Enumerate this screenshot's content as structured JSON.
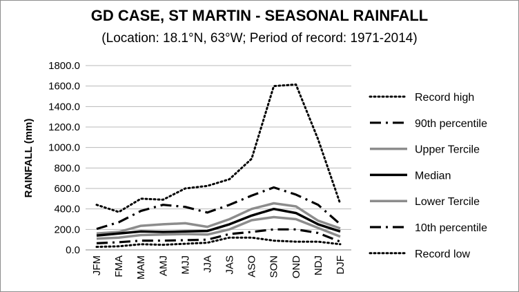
{
  "chart_data": {
    "type": "line",
    "title": "GD CASE, ST MARTIN - SEASONAL RAINFALL",
    "subtitle": "(Location: 18.1°N, 63°W; Period of record: 1971-2014)",
    "xlabel": "",
    "ylabel": "RAINFALL (mm)",
    "ylim": [
      0,
      1800
    ],
    "ytick_step": 200,
    "ytick_format_decimals": 1,
    "grid": "horizontal",
    "legend_position": "right",
    "categories": [
      "JFM",
      "FMA",
      "MAM",
      "AMJ",
      "MJJ",
      "JJA",
      "JAS",
      "ASO",
      "SON",
      "OND",
      "NDJ",
      "DJF"
    ],
    "series": [
      {
        "name": "Record high",
        "style": "dotted",
        "color": "#000000",
        "values": [
          440,
          370,
          500,
          490,
          600,
          625,
          690,
          890,
          1600,
          1615,
          1080,
          450
        ]
      },
      {
        "name": "90th percentile",
        "style": "dashdot",
        "color": "#000000",
        "values": [
          205,
          270,
          380,
          440,
          420,
          365,
          440,
          530,
          610,
          540,
          440,
          250
        ]
      },
      {
        "name": "Upper Tercile",
        "style": "solid-gray",
        "color": "#8c8c8c",
        "values": [
          160,
          175,
          235,
          250,
          260,
          225,
          300,
          400,
          455,
          425,
          285,
          210
        ]
      },
      {
        "name": "Median",
        "style": "solid-black",
        "color": "#000000",
        "values": [
          140,
          160,
          180,
          175,
          180,
          185,
          250,
          335,
          400,
          360,
          250,
          180
        ]
      },
      {
        "name": "Lower Tercile",
        "style": "solid-gray",
        "color": "#8c8c8c",
        "values": [
          110,
          120,
          145,
          150,
          155,
          150,
          200,
          290,
          320,
          300,
          215,
          130
        ]
      },
      {
        "name": "10th percentile",
        "style": "dashdot",
        "color": "#000000",
        "values": [
          65,
          75,
          90,
          90,
          95,
          100,
          155,
          175,
          200,
          200,
          165,
          80
        ]
      },
      {
        "name": "Record low",
        "style": "dotted",
        "color": "#000000",
        "values": [
          30,
          35,
          55,
          50,
          60,
          70,
          120,
          120,
          90,
          80,
          80,
          55
        ]
      }
    ]
  }
}
